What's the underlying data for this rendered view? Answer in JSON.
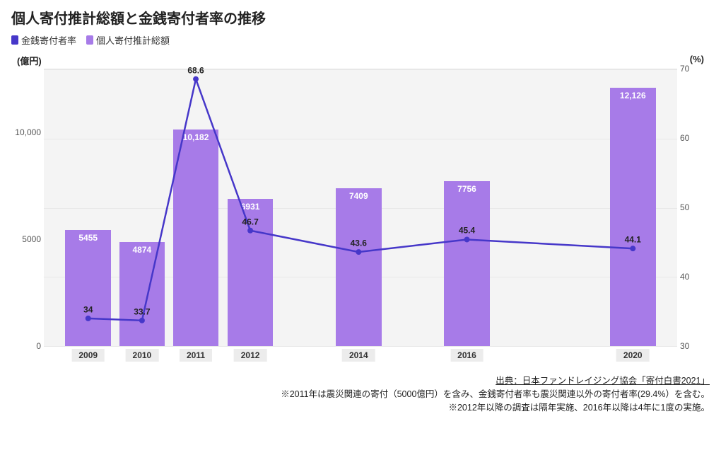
{
  "title": "個人寄付推計総額と金銭寄付者率の推移",
  "legend": {
    "line": "金銭寄付者率",
    "bar": "個人寄付推計総額"
  },
  "colors": {
    "bar": "#a77be8",
    "line": "#4637c9",
    "point": "#4637c9",
    "plot_bg": "#f4f4f4",
    "grid": "#e8e8e8",
    "xcat_bg": "#ececec"
  },
  "y_left": {
    "label": "(億円)",
    "min": 0,
    "max": 13000,
    "ticks": [
      0,
      5000,
      10000
    ],
    "tick_labels": [
      "0",
      "5000",
      "10,000"
    ]
  },
  "y_right": {
    "label": "(%)",
    "min": 30,
    "max": 70,
    "ticks": [
      30,
      40,
      50,
      60,
      70
    ]
  },
  "categories": [
    "2009",
    "2010",
    "2011",
    "2012",
    "2014",
    "2016",
    "2020"
  ],
  "category_positions_pct": [
    7,
    15.5,
    24,
    32.6,
    49.7,
    66.8,
    93
  ],
  "bars": {
    "values": [
      5455,
      4874,
      10182,
      6931,
      7409,
      7756,
      12126
    ],
    "labels": [
      "5455",
      "4874",
      "10,182",
      "6931",
      "7409",
      "7756",
      "12,126"
    ],
    "width_pct": 7.2
  },
  "line": {
    "values": [
      34,
      33.7,
      68.6,
      46.7,
      43.6,
      45.4,
      44.1
    ],
    "labels": [
      "34",
      "33.7",
      "68.6",
      "46.7",
      "43.6",
      "45.4",
      "44.1"
    ],
    "stroke_width": 2.5,
    "marker_radius": 4
  },
  "footnotes": {
    "source": "出典：日本ファンドレイジング協会「寄付白書2021」",
    "note1": "※2011年は震災関連の寄付（5000億円）を含み、金銭寄付者率も震災関連以外の寄付者率(29.4%）を含む。",
    "note2": "※2012年以降の調査は隔年実施、2016年以降は4年に1度の実施。"
  }
}
